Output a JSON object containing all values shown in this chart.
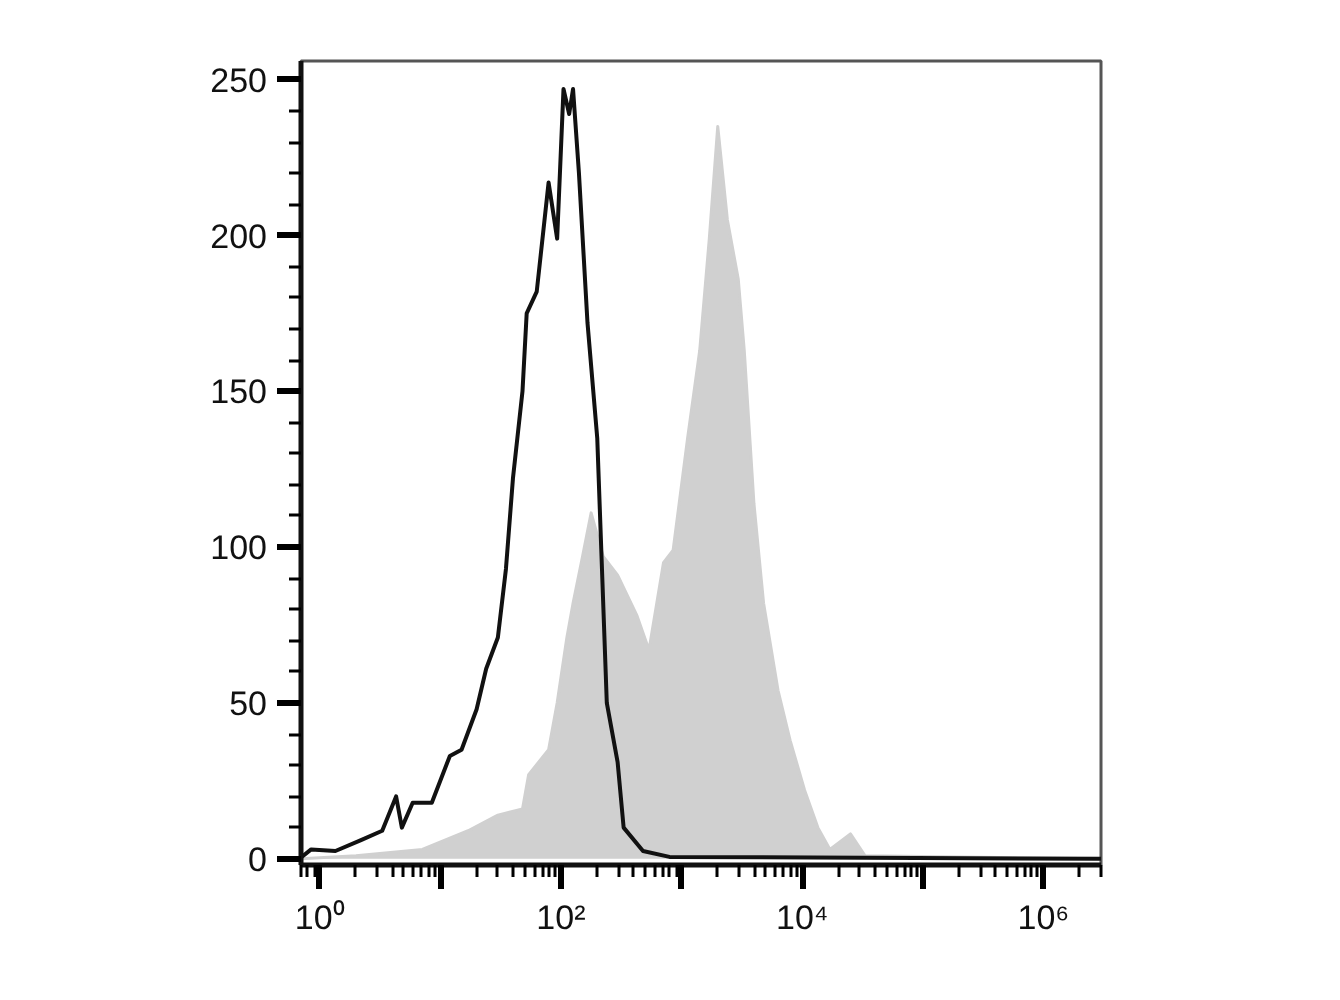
{
  "chart_data": {
    "type": "line",
    "log": "x",
    "xlim": [
      0.7,
      3000000
    ],
    "ylim": [
      -2,
      256
    ],
    "xticks": [
      {
        "value": 1,
        "label": "10⁰"
      },
      {
        "value": 10,
        "label": null
      },
      {
        "value": 100,
        "label": "10²"
      },
      {
        "value": 1000,
        "label": null
      },
      {
        "value": 10000,
        "label": "10⁴"
      },
      {
        "value": 100000,
        "label": null
      },
      {
        "value": 1000000,
        "label": "10⁶"
      }
    ],
    "yticks": [
      0,
      50,
      100,
      150,
      200,
      250
    ],
    "grid": false,
    "series": [
      {
        "type": "area",
        "color": "#d0d0d0",
        "x": [
          0.7,
          2.0,
          7.1,
          17,
          30,
          48,
          54,
          79,
          93,
          112,
          126,
          151,
          178,
          224,
          295,
          427,
          537,
          708,
          851,
          1122,
          1413,
          1698,
          1995,
          2399,
          2951,
          3311,
          3981,
          4786,
          6310,
          7943,
          10471,
          13490,
          16982,
          25119,
          33113,
          3000000
        ],
        "values": [
          0,
          1,
          3,
          9,
          14,
          16,
          27,
          35,
          50,
          71,
          82,
          97,
          111,
          97,
          91,
          78,
          67,
          95,
          99,
          135,
          163,
          199,
          235,
          205,
          186,
          163,
          114,
          82,
          54,
          38,
          22,
          10,
          3,
          8,
          1,
          0
        ]
      },
      {
        "color": "#111111",
        "x": [
          0.71,
          0.85,
          1.35,
          2.2,
          3.3,
          4.3,
          4.8,
          5.9,
          8.5,
          12,
          15,
          20,
          24,
          30,
          35,
          40,
          48,
          52,
          63,
          79,
          93,
          105,
          117,
          126,
          141,
          166,
          200,
          240,
          295,
          331,
          479,
          794,
          3000000
        ],
        "values": [
          0.6,
          3,
          2.5,
          6,
          9,
          20,
          10,
          18,
          18,
          33,
          35,
          48,
          61,
          71,
          93,
          122,
          150,
          175,
          182,
          217,
          199,
          247,
          239,
          247,
          220,
          172,
          135,
          50,
          31,
          10,
          2.5,
          0.6,
          0
        ]
      }
    ]
  }
}
